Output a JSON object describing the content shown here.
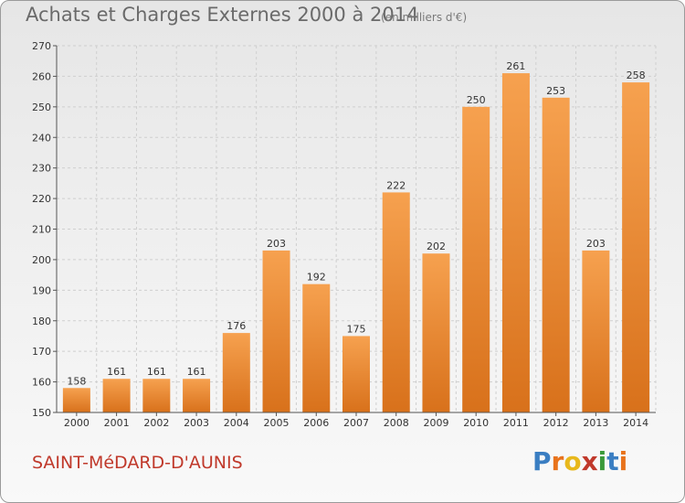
{
  "title": "Achats et Charges Externes 2000 à 2014",
  "subtitle": "(en milliers d'€)",
  "commune": "SAINT-MéDARD-D'AUNIS",
  "brand": {
    "letters": [
      "P",
      "r",
      "o",
      "x",
      "i",
      "t",
      "i"
    ],
    "colors": [
      "#3a7ec2",
      "#e8731c",
      "#e8b81c",
      "#c0392b",
      "#3a9a3a",
      "#3a7ec2",
      "#e8731c"
    ]
  },
  "colors": {
    "bar_top": "#f6a14f",
    "bar_bottom": "#d8711b",
    "grid": "#cfcfcf",
    "axis": "#555555"
  },
  "chart_data": {
    "type": "bar",
    "title": "Achats et Charges Externes 2000 à 2014",
    "subtitle": "(en milliers d'€)",
    "xlabel": "",
    "ylabel": "",
    "ylim": [
      150,
      270
    ],
    "yticks": [
      150,
      160,
      170,
      180,
      190,
      200,
      210,
      220,
      230,
      240,
      250,
      260,
      270
    ],
    "grid": true,
    "categories": [
      "2000",
      "2001",
      "2002",
      "2003",
      "2004",
      "2005",
      "2006",
      "2007",
      "2008",
      "2009",
      "2010",
      "2011",
      "2012",
      "2013",
      "2014"
    ],
    "values": [
      158,
      161,
      161,
      161,
      176,
      203,
      192,
      175,
      222,
      202,
      250,
      261,
      253,
      203,
      258
    ]
  }
}
